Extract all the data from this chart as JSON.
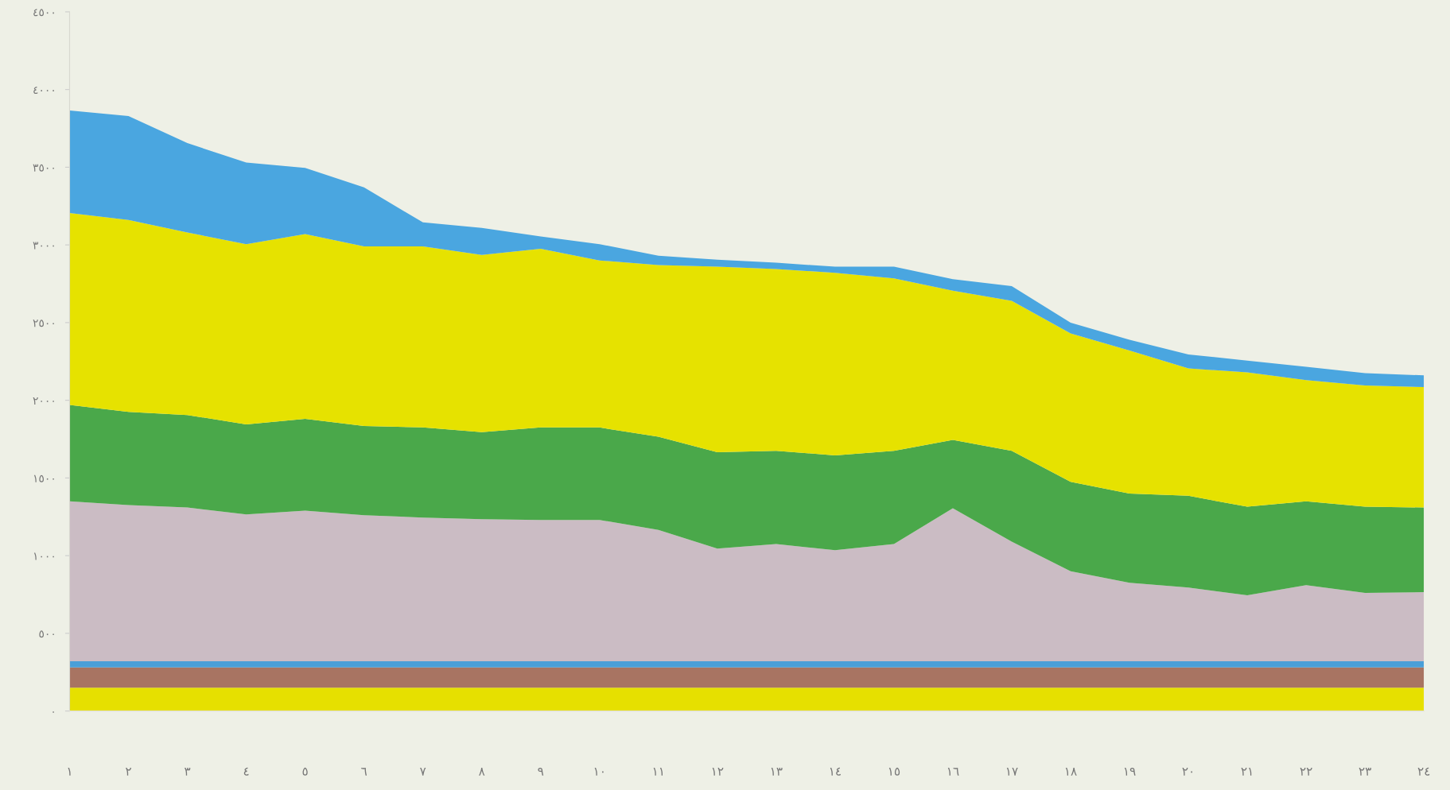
{
  "chart_data": {
    "type": "area",
    "stacked": true,
    "categories": [
      "١",
      "٢",
      "٣",
      "٤",
      "٥",
      "٦",
      "٧",
      "٨",
      "٩",
      "١٠",
      "١١",
      "١٢",
      "١٣",
      "١٤",
      "١٥",
      "١٦",
      "١٧",
      "١٨",
      "١٩",
      "٢٠",
      "٢١",
      "٢٢",
      "٢٣",
      "٢٤"
    ],
    "series": [
      {
        "color": "#e6e000",
        "values": [
          150,
          150,
          150,
          150,
          150,
          150,
          150,
          150,
          150,
          150,
          150,
          150,
          150,
          150,
          150,
          150,
          150,
          150,
          150,
          150,
          150,
          150,
          150,
          150
        ]
      },
      {
        "color": "#a87462",
        "values": [
          130,
          130,
          130,
          130,
          130,
          130,
          130,
          130,
          130,
          130,
          130,
          130,
          130,
          130,
          130,
          130,
          130,
          130,
          130,
          130,
          130,
          130,
          130,
          130
        ]
      },
      {
        "color": "#4a9fd8",
        "values": [
          40,
          40,
          40,
          40,
          40,
          40,
          40,
          40,
          40,
          40,
          40,
          40,
          40,
          40,
          40,
          40,
          40,
          40,
          40,
          40,
          40,
          40,
          40,
          40
        ]
      },
      {
        "color": "#cbbcc4",
        "values": [
          1030,
          1005,
          990,
          945,
          970,
          940,
          925,
          915,
          910,
          910,
          845,
          725,
          755,
          715,
          755,
          985,
          770,
          580,
          505,
          475,
          425,
          490,
          440,
          445
        ]
      },
      {
        "color": "#4aa84a",
        "values": [
          620,
          600,
          595,
          580,
          590,
          575,
          580,
          560,
          595,
          595,
          600,
          620,
          600,
          610,
          600,
          440,
          585,
          575,
          575,
          590,
          570,
          540,
          555,
          545
        ]
      },
      {
        "color": "#e6e200",
        "values": [
          1235,
          1235,
          1175,
          1160,
          1190,
          1155,
          1165,
          1140,
          1150,
          1075,
          1105,
          1195,
          1170,
          1175,
          1110,
          960,
          965,
          955,
          920,
          820,
          865,
          780,
          780,
          775
        ]
      },
      {
        "color": "#4aa6e0",
        "values": [
          660,
          670,
          575,
          525,
          425,
          380,
          155,
          175,
          80,
          105,
          60,
          45,
          40,
          40,
          75,
          75,
          95,
          70,
          70,
          90,
          75,
          85,
          80,
          75
        ]
      }
    ],
    "ylim": [
      0,
      4500
    ],
    "yticks": [
      {
        "value": 0,
        "label": "٠"
      },
      {
        "value": 500,
        "label": "٥٠٠"
      },
      {
        "value": 1000,
        "label": "١٠٠٠"
      },
      {
        "value": 1500,
        "label": "١٥٠٠"
      },
      {
        "value": 2000,
        "label": "٢٠٠٠"
      },
      {
        "value": 2500,
        "label": "٢٥٠٠"
      },
      {
        "value": 3000,
        "label": "٣٠٠٠"
      },
      {
        "value": 3500,
        "label": "٣٥٠٠"
      },
      {
        "value": 4000,
        "label": "٤٠٠٠"
      },
      {
        "value": 4500,
        "label": "٤٥٠٠"
      }
    ],
    "grid": false
  }
}
